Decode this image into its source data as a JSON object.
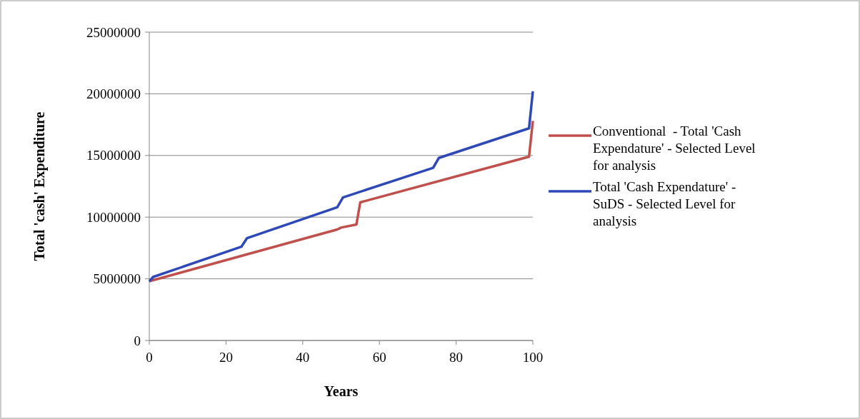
{
  "chart_data": {
    "type": "line",
    "xlabel": "Years",
    "ylabel": "Total 'cash' Expenditure",
    "xlim": [
      0,
      100
    ],
    "ylim": [
      0,
      25000000
    ],
    "xticks": [
      0,
      20,
      40,
      60,
      80,
      100
    ],
    "yticks": [
      0,
      5000000,
      10000000,
      15000000,
      20000000,
      25000000
    ],
    "grid": "y",
    "legend": "right",
    "line_style": "solid",
    "series": [
      {
        "name": "Conventional  - Total 'Cash Expendature' - Selected Level for analysis",
        "color": "#c0504d",
        "x": [
          0,
          49,
          50,
          54,
          55,
          99,
          100
        ],
        "values": [
          4800000,
          9000000,
          9150000,
          9400000,
          11200000,
          14900000,
          17800000
        ]
      },
      {
        "name": "Total 'Cash Expendature' - SuDS - Selected Level for analysis",
        "color": "#2e48b8",
        "x": [
          0,
          1,
          24,
          25.5,
          49,
          50.5,
          74,
          75.5,
          99,
          100
        ],
        "values": [
          4800000,
          5150000,
          7600000,
          8300000,
          10800000,
          11600000,
          14000000,
          14800000,
          17200000,
          20200000
        ]
      }
    ]
  }
}
